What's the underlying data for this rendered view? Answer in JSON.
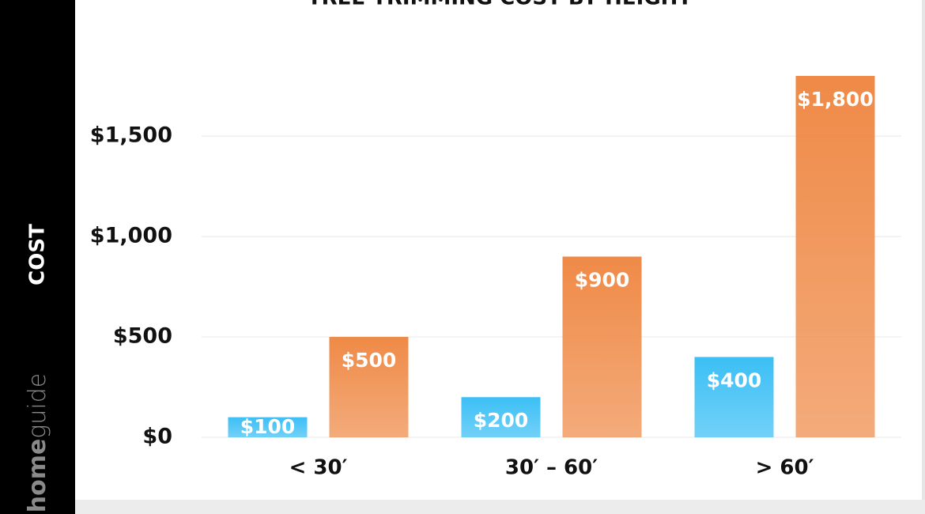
{
  "chart_data": {
    "type": "bar",
    "title": "TREE TRIMMING COST BY HEIGHT",
    "y_label": "COST",
    "categories": [
      "< 30′",
      "30′ – 60′",
      "> 60′"
    ],
    "series": [
      {
        "color": "#3bbff5",
        "values": [
          100,
          200,
          400
        ],
        "value_labels": [
          "$100",
          "$200",
          "$400"
        ]
      },
      {
        "color": "#ef8a47",
        "values": [
          500,
          900,
          1800
        ],
        "value_labels": [
          "$500",
          "$900",
          "$1,800"
        ]
      }
    ],
    "ylim": [
      0,
      1800
    ],
    "yticks": [
      {
        "value": 0,
        "label": "$0"
      },
      {
        "value": 500,
        "label": "$500"
      },
      {
        "value": 1000,
        "label": "$1,000"
      },
      {
        "value": 1500,
        "label": "$1,500"
      }
    ],
    "grid": true
  },
  "brand": {
    "bold": "home",
    "light": "guide"
  }
}
